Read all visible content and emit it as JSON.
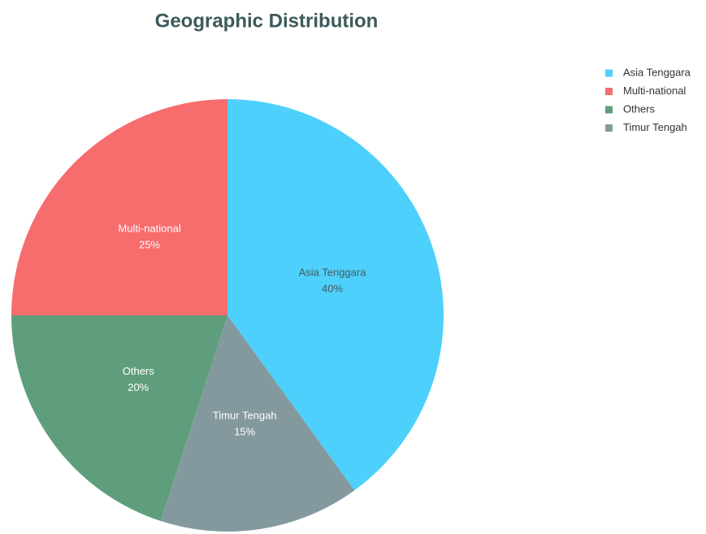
{
  "chart_data": {
    "type": "pie",
    "title": "Geographic Distribution",
    "categories": [
      "Asia Tenggara",
      "Timur Tengah",
      "Others",
      "Multi-national"
    ],
    "values": [
      40,
      15,
      20,
      25
    ],
    "value_labels": [
      "40%",
      "15%",
      "20%",
      "25%"
    ],
    "colors": [
      "#4dd0fb",
      "#84999e",
      "#5e9e7c",
      "#f76c6c"
    ],
    "legend": "top-right"
  }
}
